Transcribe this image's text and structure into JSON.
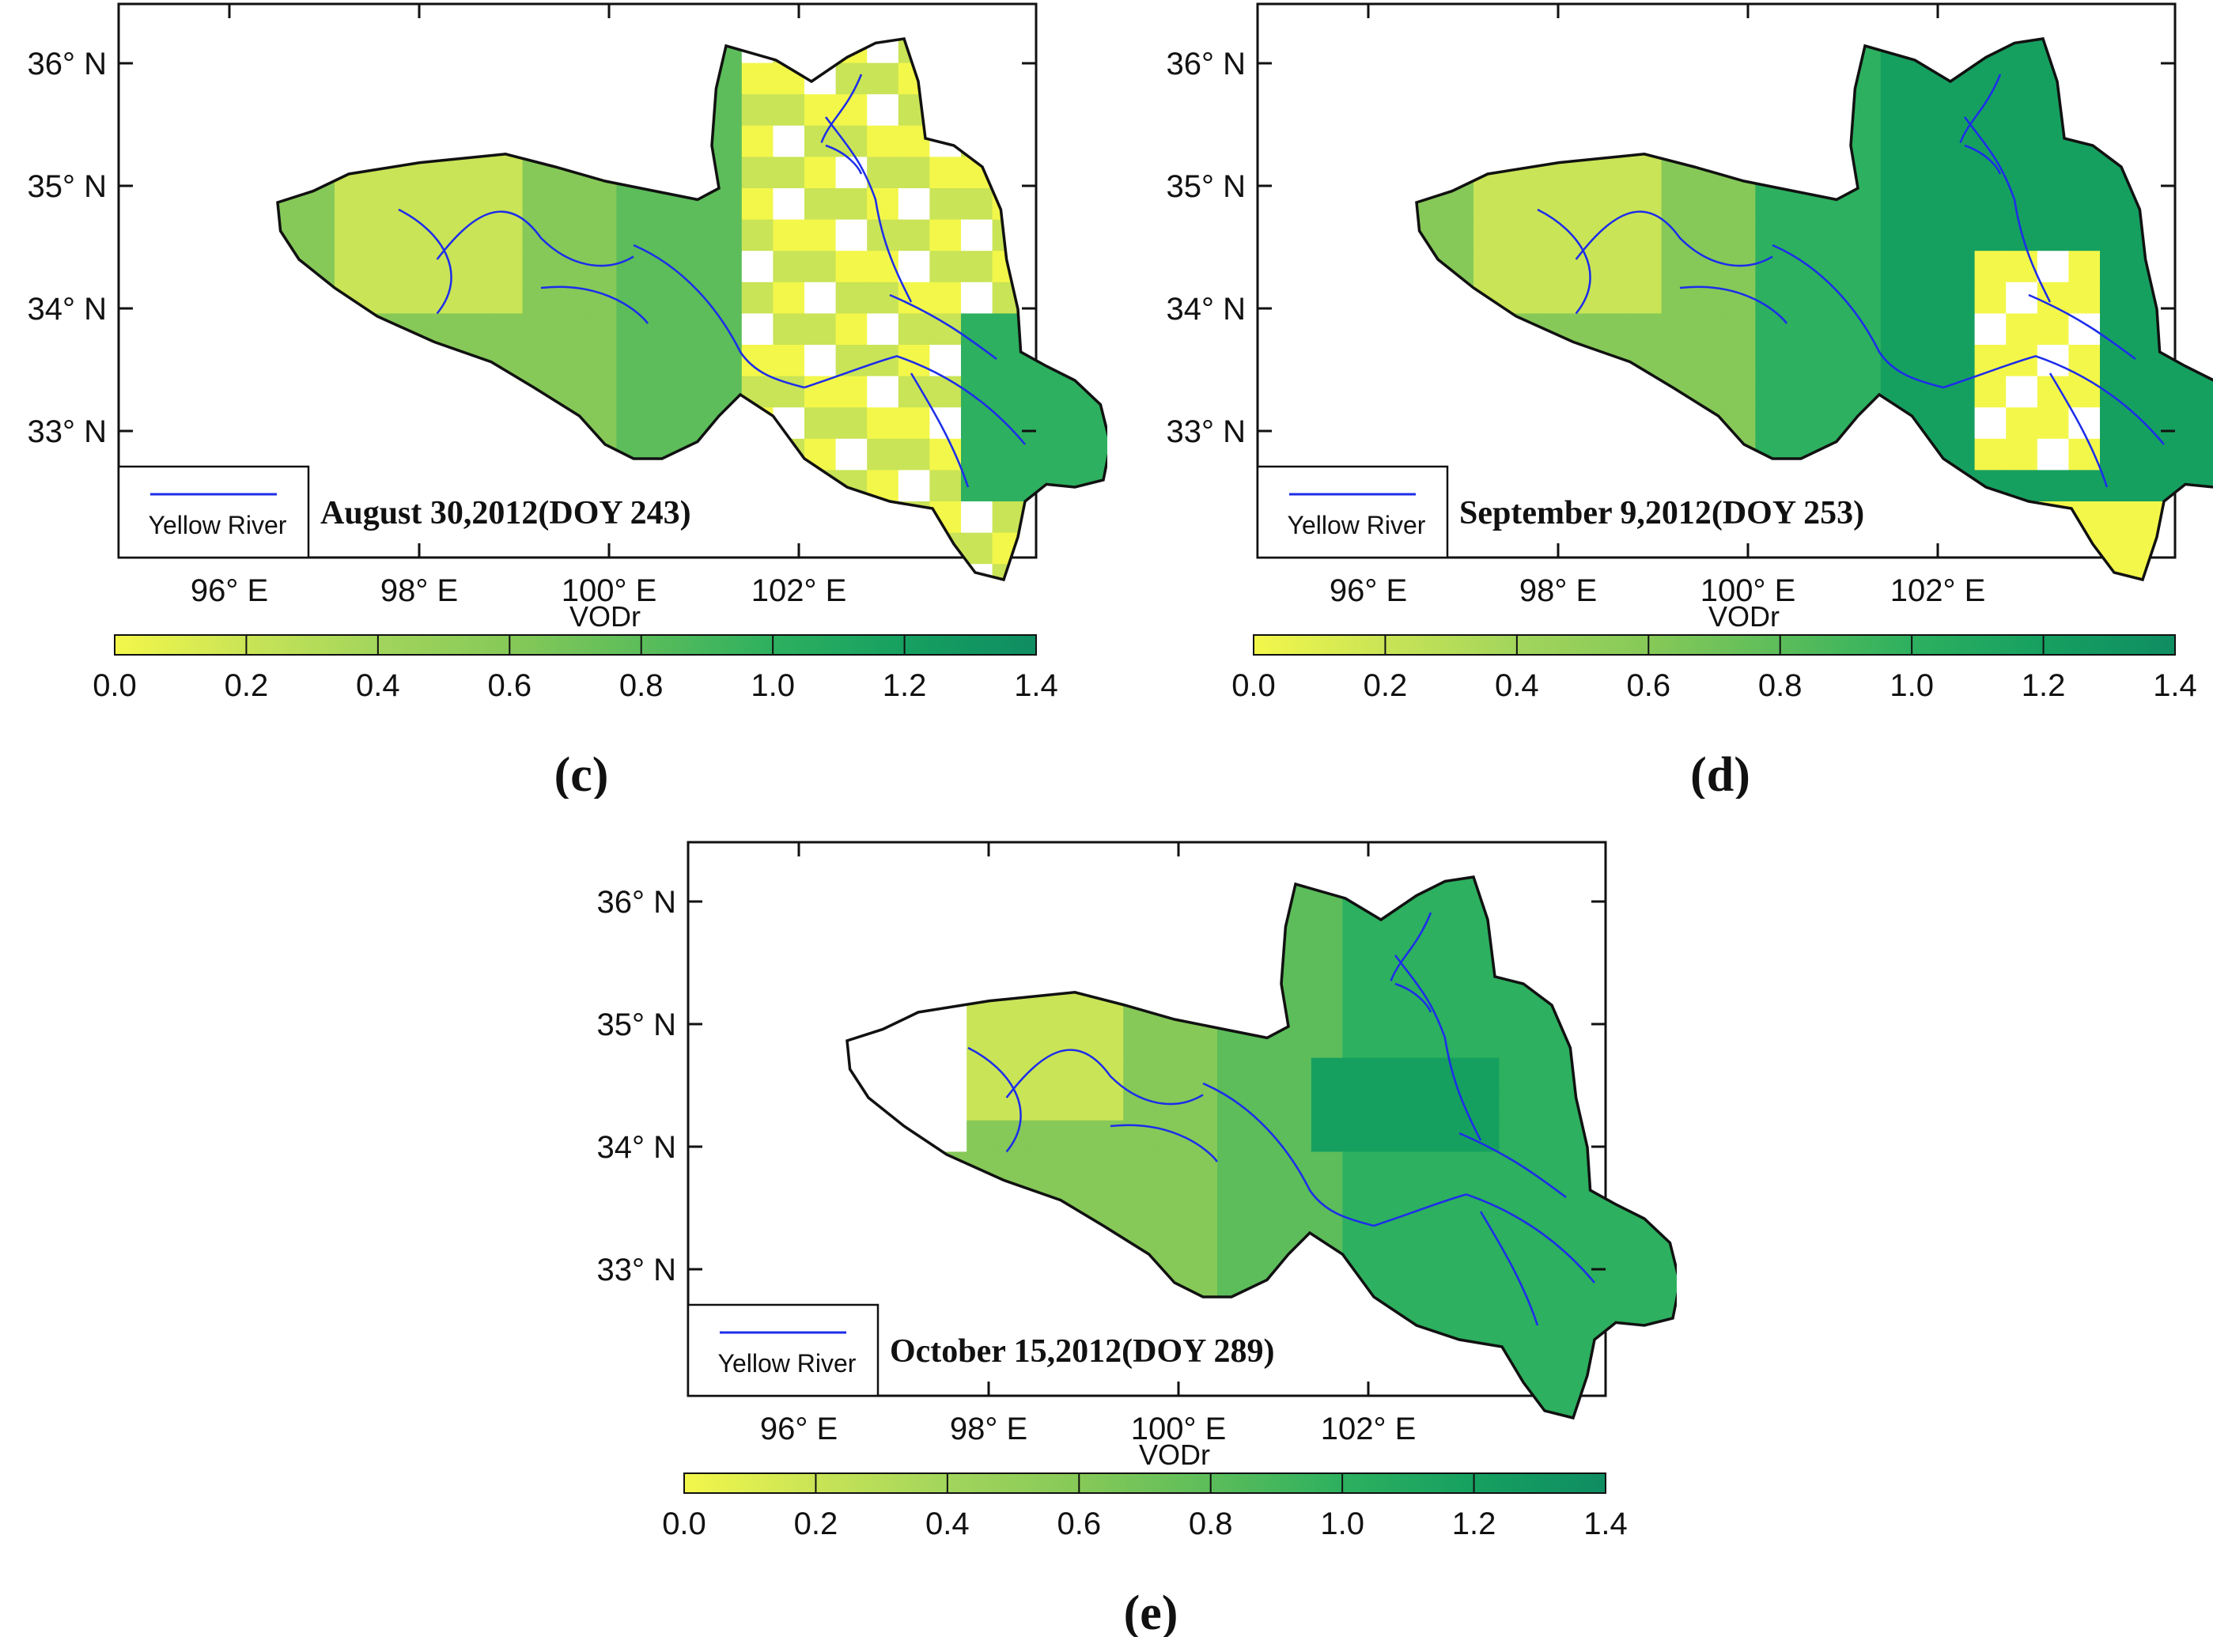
{
  "colors": {
    "ramp": [
      "#f3f74a",
      "#c9e456",
      "#a2d55c",
      "#86c958",
      "#5cbd5a",
      "#2db05f",
      "#16a060",
      "#0f8d62"
    ],
    "river": "#1d2dea",
    "outline": "#111111",
    "background": "#ffffff"
  },
  "map_axes": {
    "lat_labels": [
      "36° N",
      "35° N",
      "34° N",
      "33° N"
    ],
    "lon_labels": [
      "96° E",
      "98° E",
      "100° E",
      "102° E"
    ]
  },
  "legend": {
    "river_label": "Yellow River"
  },
  "colorbar": {
    "title": "VODr",
    "ticks": [
      "0.0",
      "0.2",
      "0.4",
      "0.6",
      "0.8",
      "1.0",
      "1.2",
      "1.4"
    ]
  },
  "panels": [
    {
      "label": "(c)",
      "date": "August 30,2012(DOY 243)"
    },
    {
      "label": "(d)",
      "date": "September 9,2012(DOY 253)"
    },
    {
      "label": "(e)",
      "date": "October 15,2012(DOY 289)"
    }
  ]
}
